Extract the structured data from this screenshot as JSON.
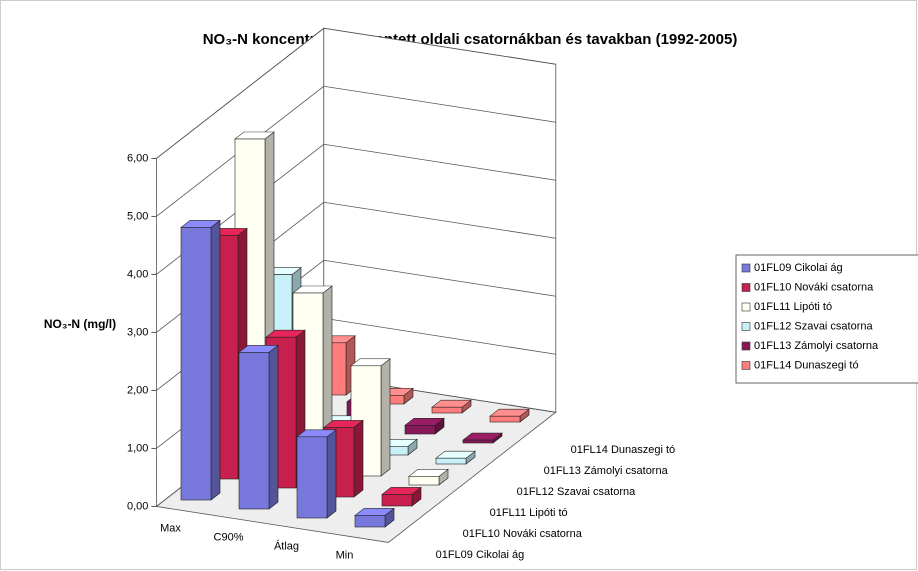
{
  "chart_data": {
    "type": "bar3d",
    "title": "NO₃-N koncentráció a mentett oldali csatornákban és tavakban (1992-2005)",
    "y_label": "NO₃-N (mg/l)",
    "categories": [
      "Max",
      "C90%",
      "Átlag",
      "Min"
    ],
    "series": [
      {
        "name": "01FL09 Cikolai ág",
        "color": "#7878dc",
        "values": [
          4.7,
          2.7,
          1.4,
          0.2
        ]
      },
      {
        "name": "01FL10 Nováki csatorna",
        "color": "#c8204e",
        "values": [
          4.2,
          2.6,
          1.2,
          0.2
        ]
      },
      {
        "name": "01FL11 Lipóti tó",
        "color": "#fffff2",
        "values": [
          5.5,
          3.0,
          1.9,
          0.15
        ]
      },
      {
        "name": "01FL12 Szavai csatorna",
        "color": "#c8f0f8",
        "values": [
          2.8,
          0.4,
          0.15,
          0.1
        ]
      },
      {
        "name": "01FL13 Zámolyi csatorna",
        "color": "#861858",
        "values": [
          1.5,
          0.4,
          0.15,
          0.05
        ]
      },
      {
        "name": "01FL14 Dunaszegi tó",
        "color": "#ff7c7c",
        "values": [
          0.9,
          0.15,
          0.1,
          0.1
        ]
      }
    ],
    "ylim": [
      0,
      6
    ],
    "yticks": [
      {
        "value": 0,
        "label": "0,00"
      },
      {
        "value": 1,
        "label": "1,00"
      },
      {
        "value": 2,
        "label": "2,00"
      },
      {
        "value": 3,
        "label": "3,00"
      },
      {
        "value": 4,
        "label": "4,00"
      },
      {
        "value": 5,
        "label": "5,00"
      },
      {
        "value": 6,
        "label": "6,00"
      }
    ],
    "grid": true
  }
}
